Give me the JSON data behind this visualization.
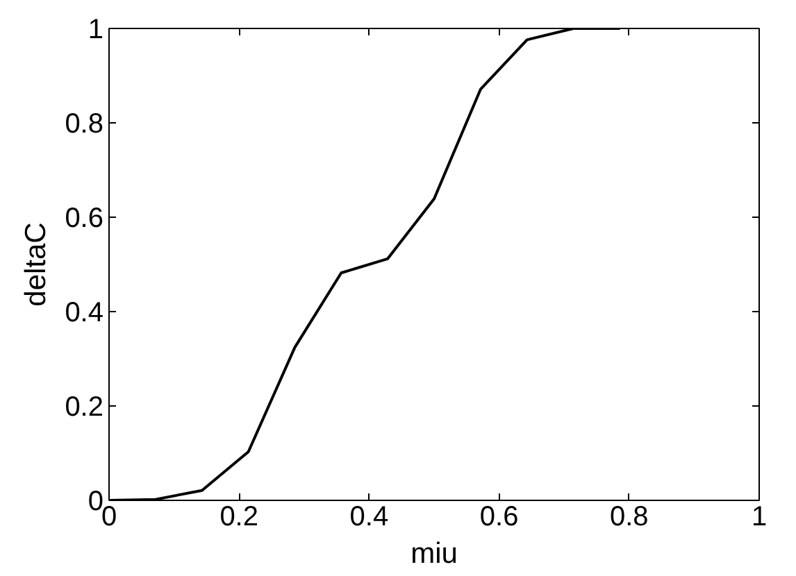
{
  "chart_data": {
    "type": "line",
    "xlabel": "miu",
    "ylabel": "deltaC",
    "x": [
      0,
      0.0714,
      0.1429,
      0.2143,
      0.2857,
      0.3571,
      0.4286,
      0.5,
      0.5714,
      0.6429,
      0.7143,
      0.7857
    ],
    "series": [
      {
        "color": "#000000",
        "values": [
          0,
          0.002,
          0.021,
          0.103,
          0.324,
          0.482,
          0.512,
          0.639,
          0.871,
          0.976,
          1.0,
          1.0
        ]
      }
    ],
    "xlim": [
      0,
      1
    ],
    "ylim": [
      0,
      1
    ],
    "xticks": [
      0,
      0.2,
      0.4,
      0.6,
      0.8,
      1
    ],
    "yticks": [
      0,
      0.2,
      0.4,
      0.6,
      0.8,
      1
    ],
    "grid": false,
    "line_style": "solid"
  }
}
